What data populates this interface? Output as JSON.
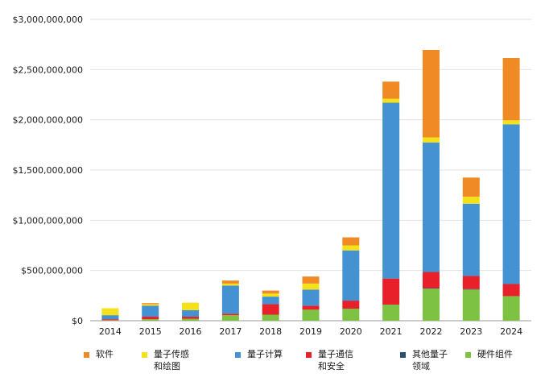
{
  "chart_data": {
    "type": "bar",
    "stacked": true,
    "categories": [
      "2014",
      "2015",
      "2016",
      "2017",
      "2018",
      "2019",
      "2020",
      "2021",
      "2022",
      "2023",
      "2024"
    ],
    "series": [
      {
        "name": "硬件组件",
        "color": "#7dc242",
        "values": [
          5000000,
          15000000,
          20000000,
          55000000,
          60000000,
          110000000,
          120000000,
          160000000,
          320000000,
          310000000,
          245000000
        ]
      },
      {
        "name": "其他量子领域",
        "color": "#2f4f6f",
        "values": [
          0,
          0,
          0,
          0,
          0,
          0,
          0,
          0,
          5000000,
          5000000,
          0
        ]
      },
      {
        "name": "量子通信和安全",
        "color": "#e8202a",
        "values": [
          10000000,
          25000000,
          20000000,
          15000000,
          105000000,
          40000000,
          80000000,
          260000000,
          160000000,
          130000000,
          120000000
        ]
      },
      {
        "name": "量子计算",
        "color": "#4492d1",
        "values": [
          40000000,
          110000000,
          65000000,
          280000000,
          75000000,
          160000000,
          500000000,
          1750000000,
          1290000000,
          720000000,
          1590000000
        ]
      },
      {
        "name": "量子传感和绘图",
        "color": "#f5e11a",
        "values": [
          70000000,
          15000000,
          75000000,
          20000000,
          30000000,
          60000000,
          50000000,
          40000000,
          50000000,
          70000000,
          40000000
        ]
      },
      {
        "name": "软件",
        "color": "#f08a24",
        "values": [
          0,
          10000000,
          0,
          30000000,
          30000000,
          70000000,
          80000000,
          170000000,
          870000000,
          190000000,
          620000000
        ]
      }
    ],
    "ylim": [
      0,
      3000000000
    ],
    "yticks": [
      0,
      500000000,
      1000000000,
      1500000000,
      2000000000,
      2500000000,
      3000000000
    ],
    "ytick_labels": [
      "$0",
      "$500,000,000",
      "$1,000,000,000",
      "$1,500,000,000",
      "$2,000,000,000",
      "$2,500,000,000",
      "$3,000,000,000"
    ],
    "grid": true,
    "legend_position": "bottom"
  },
  "legend": {
    "items": [
      {
        "label": "软件",
        "color": "#f08a24"
      },
      {
        "label": "量子传感\n和绘图",
        "color": "#f5e11a"
      },
      {
        "label": "量子计算",
        "color": "#4492d1"
      },
      {
        "label": "量子通信\n和安全",
        "color": "#e8202a"
      },
      {
        "label": "其他量子\n领域",
        "color": "#2f4f6f"
      },
      {
        "label": "硬件组件",
        "color": "#7dc242"
      }
    ]
  }
}
